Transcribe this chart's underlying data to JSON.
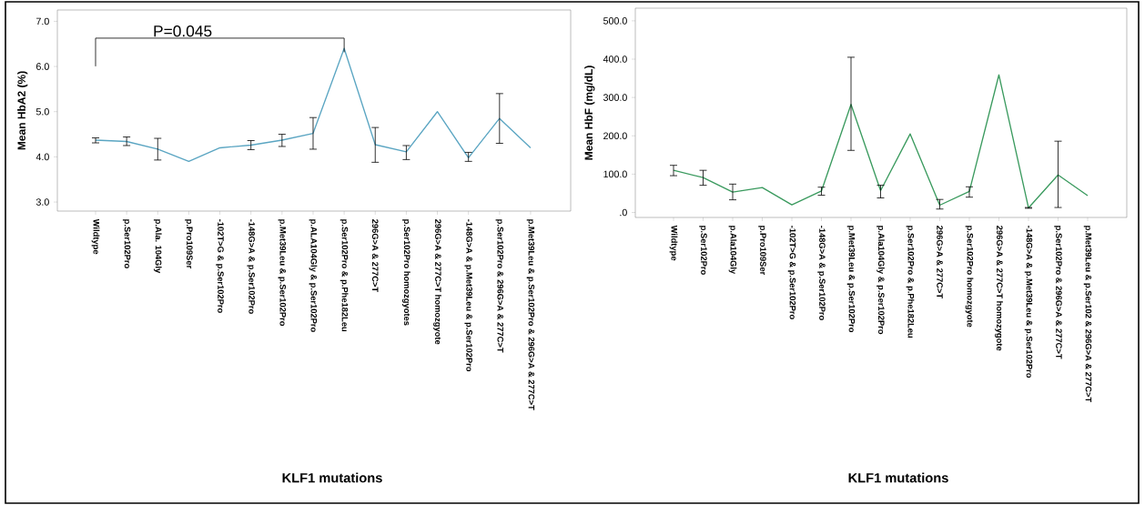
{
  "chart_data": [
    {
      "type": "line",
      "xlabel": "KLF1 mutations",
      "ylabel": "Mean HbA2 (%)",
      "categories": [
        "Wildtype",
        "p.Ser102Pro",
        "p.Ala. 104Gly",
        "p.Pro109Ser",
        "-102T>G & p.Ser102Pro",
        "-148G>A & p.Ser102Pro",
        "p.Met39Leu & p.Ser102Pro",
        "p.ALA104Gly & p.Ser102Pro",
        "p.Ser102Pro & p.Phe182Leu",
        "296G>A & 277C>T",
        "p.Ser102Pro homozgyotes",
        "296G>A & 277C>T homozgyote",
        "-148G>A & p.Met39Leu & p.Ser102Pro",
        "p.Ser102Pro & 296G>A & 277C>T",
        "p.Met39Leu & p.Ser102Pro & 296G>A & 277C>T"
      ],
      "series": [
        {
          "color": "#5aa5c2",
          "values": [
            4.37,
            4.34,
            4.17,
            3.9,
            4.2,
            4.26,
            4.37,
            4.52,
            6.4,
            4.27,
            4.11,
            5.0,
            3.98,
            4.85,
            4.2
          ],
          "errors": [
            [
              4.31,
              4.42
            ],
            [
              4.25,
              4.44
            ],
            [
              3.93,
              4.41
            ],
            null,
            null,
            [
              4.16,
              4.36
            ],
            [
              4.23,
              4.5
            ],
            [
              4.17,
              4.87
            ],
            null,
            [
              3.88,
              4.65
            ],
            [
              3.94,
              4.25
            ],
            null,
            [
              3.9,
              4.1
            ],
            [
              4.3,
              5.4
            ],
            null
          ]
        }
      ],
      "ylim": [
        2.8,
        7.25
      ],
      "yticks": [
        {
          "value": 3,
          "label": "3.0"
        },
        {
          "value": 4,
          "label": "4.0"
        },
        {
          "value": 5,
          "label": "5.0"
        },
        {
          "value": 6,
          "label": "6.0"
        },
        {
          "value": 7,
          "label": "7.0"
        }
      ],
      "annotations": [
        "P=0.045"
      ],
      "grid": false
    },
    {
      "type": "line",
      "xlabel": "KLF1 mutations",
      "ylabel": "Mean HbF (mg/dL)",
      "categories": [
        "Wildtype",
        "p.Ser102Pro",
        "p.Ala104Gly",
        "p.Pro109Ser",
        "-102T>G & p.Ser102Pro",
        "-148G>A & p.Ser102Pro",
        "p.Met39Leu & p.Ser102Pro",
        "p.Ala104Gly & p.Ser102Pro",
        "p.Ser102Pro & p.Phe182Leu",
        "296G>A & 277C>T",
        "p.Ser102Pro homozgyote",
        "296G>A & 277C>T homozygote",
        "-148G>A & p.Met39Leu & p.Ser102Pro",
        "p.Ser102Pro & 296G>A & 277C>T",
        "p.Met39Leu & p.Ser102 & 296G>A & 277C>T"
      ],
      "series": [
        {
          "color": "#3a9a5e",
          "values": [
            110,
            91,
            53,
            65,
            20,
            56,
            282,
            57,
            205,
            19,
            55,
            359,
            12,
            98,
            44
          ],
          "errors": [
            [
              96,
              123
            ],
            [
              71,
              110
            ],
            [
              33,
              74
            ],
            null,
            null,
            [
              45,
              66
            ],
            [
              162,
              405
            ],
            [
              38,
              71
            ],
            null,
            [
              9,
              34
            ],
            [
              40,
              67
            ],
            null,
            [
              11,
              13
            ],
            [
              13,
              186
            ],
            null
          ]
        }
      ],
      "ylim": [
        -13,
        533
      ],
      "yticks": [
        {
          "value": 0,
          "label": ".0"
        },
        {
          "value": 100,
          "label": "100.0"
        },
        {
          "value": 200,
          "label": "200.0"
        },
        {
          "value": 300,
          "label": "300.0"
        },
        {
          "value": 400,
          "label": "400.0"
        },
        {
          "value": 500,
          "label": "500.0"
        }
      ],
      "grid": false
    }
  ]
}
